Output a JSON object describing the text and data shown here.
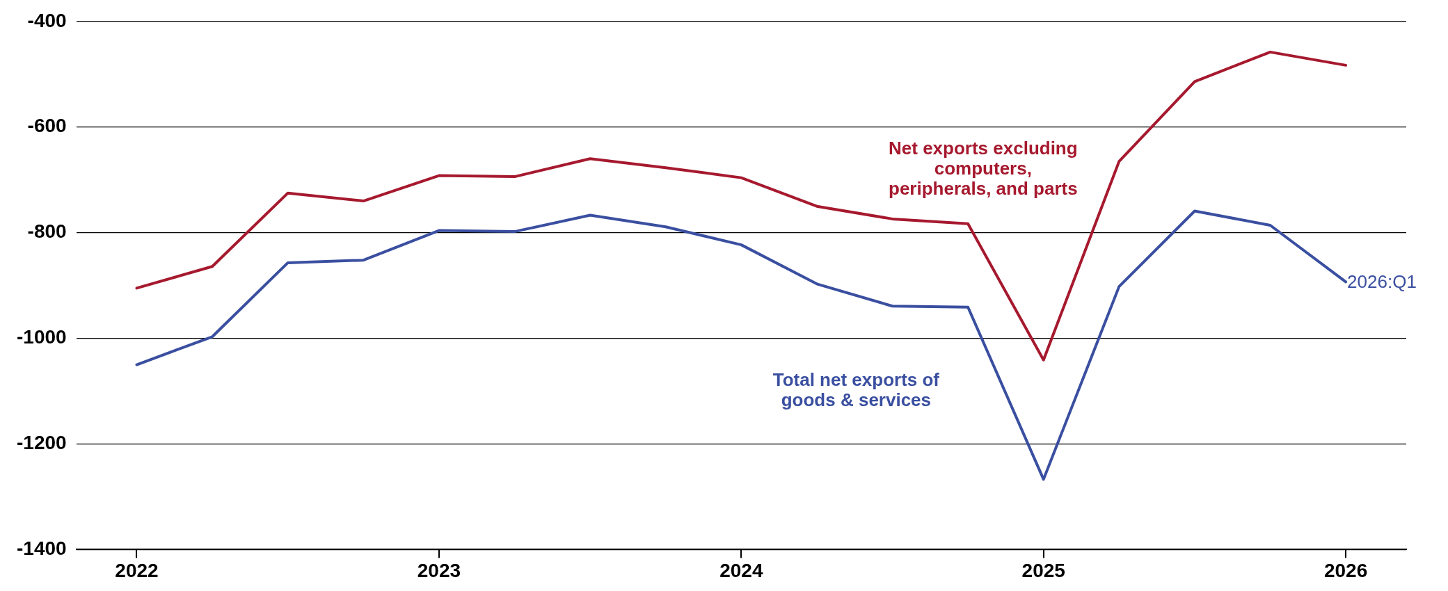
{
  "chart_data": {
    "type": "line",
    "x": [
      2022,
      2022.25,
      2022.5,
      2022.75,
      2023,
      2023.25,
      2023.5,
      2023.75,
      2024,
      2024.25,
      2024.5,
      2024.75,
      2025,
      2025.25,
      2025.5,
      2025.75,
      2026
    ],
    "series": [
      {
        "name": "Net exports excluding computers, peripherals, and parts",
        "color": "#a6192e",
        "values": [
          -905,
          -864,
          -725,
          -740,
          -692,
          -694,
          -660,
          -677,
          -696,
          -750,
          -774,
          -783,
          -1041,
          -665,
          -514,
          -458,
          -483
        ]
      },
      {
        "name": "Total net exports of goods & services",
        "color": "#3a4fa0",
        "values": [
          -1050,
          -997,
          -857,
          -852,
          -796,
          -798,
          -767,
          -789,
          -823,
          -897,
          -939,
          -941,
          -1267,
          -902,
          -759,
          -786,
          -893
        ]
      }
    ],
    "xlim": [
      2021.8,
      2026.2
    ],
    "xticks": [
      2022,
      2023,
      2024,
      2025,
      2026
    ],
    "ylim": [
      -1400,
      -400
    ],
    "yticks": [
      -1400,
      -1200,
      -1000,
      -800,
      -600,
      -400
    ],
    "annotations": [
      {
        "text": "2026:Q1",
        "x": 2026,
        "y": -893
      }
    ],
    "grid": "y",
    "legend": false,
    "marker": "none",
    "line_style": "solid"
  }
}
